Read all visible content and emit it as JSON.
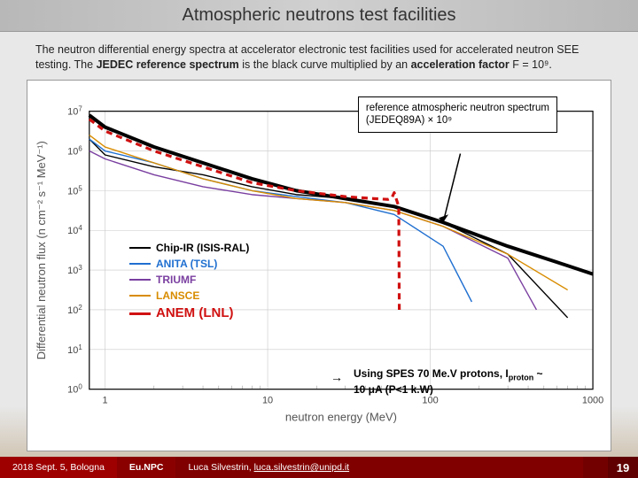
{
  "title": "Atmospheric neutrons test facilities",
  "description_html": "The neutron differential energy spectra at accelerator electronic test facilities used for accelerated neutron SEE testing. The <b>JEDEC reference spectrum</b> is the black curve multiplied by an <b>acceleration factor</b> F = 10⁹.",
  "chart": {
    "type": "line",
    "xlabel": "neutron energy (MeV)",
    "ylabel": "Differential neutron flux (n cm⁻² s⁻¹ MeV⁻¹)",
    "xscale": "log",
    "yscale": "log",
    "xlim": [
      0.8,
      1000
    ],
    "ylim": [
      1,
      10000000.0
    ],
    "xticks": [
      1,
      10,
      100,
      1000
    ],
    "yticks_exp": [
      0,
      1,
      2,
      3,
      4,
      5,
      6,
      7
    ],
    "background_color": "#ffffff",
    "grid_color": "#c8c8c8",
    "axis_color": "#000000",
    "label_fontsize": 13,
    "tick_fontsize": 11,
    "legend_box": {
      "lines": [
        "reference atmospheric neutron spectrum",
        "(JEDEQ89A) × 10⁹"
      ],
      "border_color": "#000000",
      "arrow_color": "#000000"
    },
    "series": [
      {
        "name": "JEDEC reference",
        "color": "#000000",
        "width": 4,
        "dash": "",
        "x": [
          0.8,
          1,
          2,
          4,
          8,
          15,
          30,
          60,
          120,
          300,
          600,
          1000
        ],
        "y_exp": [
          6.9,
          6.6,
          6.1,
          5.7,
          5.3,
          5.0,
          4.8,
          4.6,
          4.2,
          3.6,
          3.2,
          2.9
        ]
      },
      {
        "name": "Chip-IR (ISIS-RAL)",
        "color": "#000000",
        "width": 1.4,
        "dash": "",
        "x": [
          0.8,
          1,
          2,
          4,
          8,
          15,
          30,
          60,
          120,
          300,
          700
        ],
        "y_exp": [
          6.3,
          5.9,
          5.6,
          5.4,
          5.1,
          4.9,
          4.8,
          4.6,
          4.2,
          3.4,
          1.8
        ]
      },
      {
        "name": "ANITA (TSL)",
        "color": "#1f6fd0",
        "width": 1.4,
        "dash": "",
        "x": [
          0.8,
          1,
          2,
          4,
          8,
          15,
          30,
          60,
          120,
          180
        ],
        "y_exp": [
          6.3,
          6.0,
          5.7,
          5.3,
          5.0,
          4.85,
          4.7,
          4.4,
          3.6,
          2.2
        ]
      },
      {
        "name": "TRIUMF",
        "color": "#7a3fa0",
        "width": 1.4,
        "dash": "",
        "x": [
          0.8,
          1,
          2,
          4,
          8,
          15,
          30,
          60,
          120,
          300,
          450
        ],
        "y_exp": [
          6.0,
          5.8,
          5.4,
          5.1,
          4.9,
          4.8,
          4.7,
          4.5,
          4.1,
          3.3,
          2.0
        ]
      },
      {
        "name": "LANSCE",
        "color": "#d88c00",
        "width": 1.4,
        "dash": "",
        "x": [
          0.8,
          1,
          2,
          4,
          8,
          15,
          30,
          60,
          120,
          300,
          700
        ],
        "y_exp": [
          6.4,
          6.1,
          5.7,
          5.3,
          5.0,
          4.8,
          4.7,
          4.5,
          4.1,
          3.4,
          2.5
        ]
      },
      {
        "name": "ANEM (LNL)",
        "color": "#d01010",
        "width": 3.2,
        "dash": "7,5",
        "x": [
          0.8,
          1,
          2,
          4,
          8,
          15,
          30,
          45,
          55,
          58,
          60,
          64,
          64.5
        ],
        "y_exp": [
          6.8,
          6.5,
          6.0,
          5.6,
          5.2,
          5.0,
          4.85,
          4.8,
          4.78,
          4.82,
          4.95,
          4.6,
          2.0
        ]
      }
    ],
    "series_legend": [
      {
        "label": "Chip-IR (ISIS-RAL)",
        "color": "#000000",
        "bold": false
      },
      {
        "label": "ANITA (TSL)",
        "color": "#1f6fd0",
        "bold": false
      },
      {
        "label": "TRIUMF",
        "color": "#7a3fa0",
        "bold": false
      },
      {
        "label": "LANSCE",
        "color": "#d88c00",
        "bold": false
      },
      {
        "label": "ANEM (LNL)",
        "color": "#d01010",
        "bold": true,
        "big": true
      }
    ]
  },
  "annotation": "Using SPES 70 Me.V protons, I<sub>proton</sub> ~ 10 μA (P<1 k.W)",
  "footer": {
    "date": "2018 Sept. 5, Bologna",
    "conf": "Eu.NPC",
    "author": "Luca Silvestrin,",
    "email": "luca.silvestrin@unipd.it",
    "page": "19"
  }
}
